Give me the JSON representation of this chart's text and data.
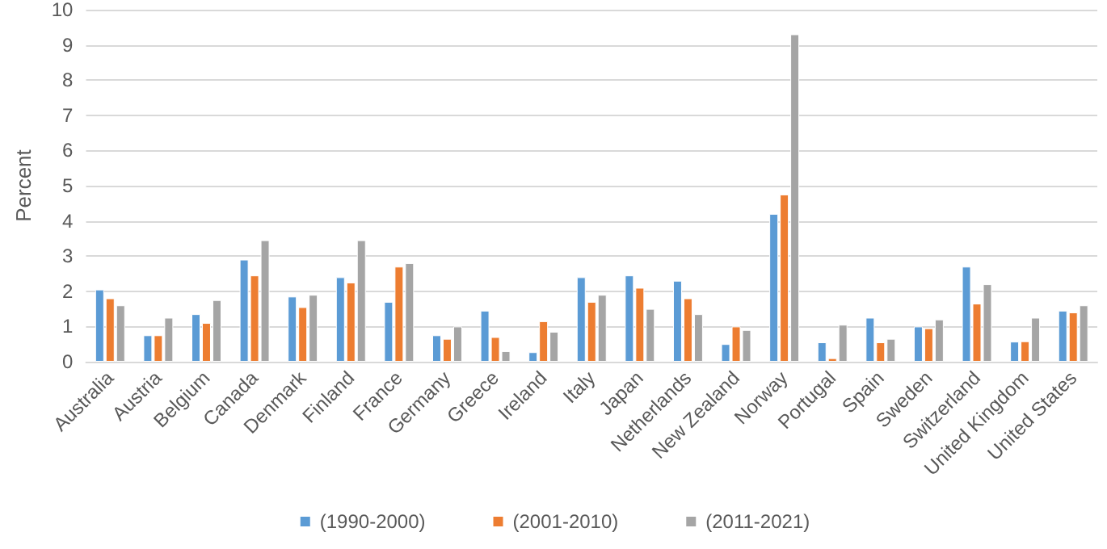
{
  "chart_data": {
    "type": "bar",
    "ylabel": "Percent",
    "categories": [
      "Australia",
      "Austria",
      "Belgium",
      "Canada",
      "Denmark",
      "Finland",
      "France",
      "Germany",
      "Greece",
      "Ireland",
      "Italy",
      "Japan",
      "Netherlands",
      "New Zealand",
      "Norway",
      "Portugal",
      "Spain",
      "Sweden",
      "Switzerland",
      "United Kingdom",
      "United States"
    ],
    "series": [
      {
        "name": "(1990-2000)",
        "color": "#5b9bd5",
        "values": [
          2.05,
          0.75,
          1.35,
          2.9,
          1.85,
          2.4,
          1.7,
          0.75,
          1.45,
          0.27,
          2.4,
          2.45,
          2.3,
          0.5,
          4.2,
          0.55,
          1.25,
          1.0,
          2.7,
          0.57,
          1.45
        ]
      },
      {
        "name": "(2001-2010)",
        "color": "#ed7d31",
        "values": [
          1.8,
          0.75,
          1.1,
          2.45,
          1.55,
          2.25,
          2.7,
          0.65,
          0.7,
          1.15,
          1.7,
          2.1,
          1.8,
          1.0,
          4.75,
          0.1,
          0.55,
          0.95,
          1.65,
          0.58,
          1.4
        ]
      },
      {
        "name": "(2011-2021)",
        "color": "#a5a5a5",
        "values": [
          1.6,
          1.25,
          1.75,
          3.45,
          1.9,
          3.45,
          2.8,
          1.0,
          0.3,
          0.85,
          1.9,
          1.5,
          1.35,
          0.9,
          9.3,
          1.05,
          0.65,
          1.2,
          2.2,
          1.25,
          1.6
        ]
      }
    ],
    "ylim": [
      0,
      10
    ],
    "yticks": [
      0,
      1,
      2,
      3,
      4,
      5,
      6,
      7,
      8,
      9,
      10
    ],
    "grid": "y",
    "legend": "bottom"
  }
}
